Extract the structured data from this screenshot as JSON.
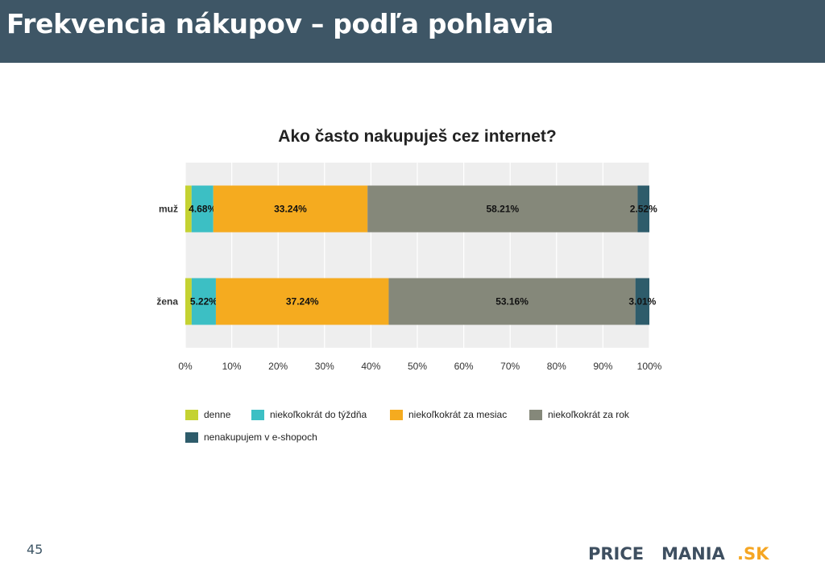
{
  "header": {
    "title": "Frekvencia nákupov – podľa pohlavia"
  },
  "page_number": "45",
  "logo": {
    "text_a": "PRICE",
    "text_b": "MANIA",
    "text_c": ".SK",
    "color_dark": "#3e4f60",
    "color_accent": "#f5a623"
  },
  "chart_data": {
    "type": "bar",
    "orientation": "horizontal",
    "stacked": true,
    "percent_stacked": true,
    "title": "Ako často nakupuješ cez internet?",
    "categories": [
      "muž",
      "žena"
    ],
    "series": [
      {
        "name": "denne",
        "color": "#c4d232",
        "values": [
          1.35,
          1.37
        ],
        "labels": [
          "",
          ""
        ]
      },
      {
        "name": "niekoľkokrát do týždňa",
        "color": "#3cbfc4",
        "values": [
          4.68,
          5.22
        ],
        "labels": [
          "4.68%",
          "5.22%"
        ]
      },
      {
        "name": "niekoľkokrát za mesiac",
        "color": "#f5ab1f",
        "values": [
          33.24,
          37.24
        ],
        "labels": [
          "33.24%",
          "37.24%"
        ]
      },
      {
        "name": "niekoľkokrát za rok",
        "color": "#85887a",
        "values": [
          58.21,
          53.16
        ],
        "labels": [
          "58.21%",
          "53.16%"
        ]
      },
      {
        "name": "nenakupujem v e-shopoch",
        "color": "#2e5c6b",
        "values": [
          2.52,
          3.01
        ],
        "labels": [
          "2.52%",
          "3.01%"
        ]
      }
    ],
    "x_ticks": [
      "0%",
      "10%",
      "20%",
      "30%",
      "40%",
      "50%",
      "60%",
      "70%",
      "80%",
      "90%",
      "100%"
    ],
    "xlim": [
      0,
      100
    ],
    "grid": true,
    "legend_position": "bottom"
  }
}
